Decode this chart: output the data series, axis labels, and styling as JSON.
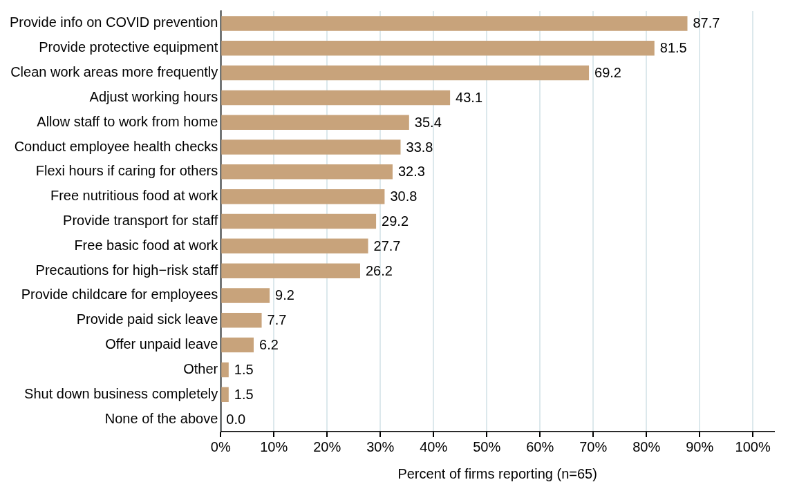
{
  "chart_data": {
    "type": "bar",
    "orientation": "horizontal",
    "xlabel": "Percent of firms reporting (n=65)",
    "categories": [
      "Provide info on COVID prevention",
      "Provide protective equipment",
      "Clean work areas more frequently",
      "Adjust working hours",
      "Allow staff to work from home",
      "Conduct employee health checks",
      "Flexi hours if caring for others",
      "Free nutritious food at work",
      "Provide transport for staff",
      "Free basic food at work",
      "Precautions for high−risk staff",
      "Provide childcare for employees",
      "Provide paid sick leave",
      "Offer unpaid leave",
      "Other",
      "Shut down business completely",
      "None of the above"
    ],
    "values": [
      87.7,
      81.5,
      69.2,
      43.1,
      35.4,
      33.8,
      32.3,
      30.8,
      29.2,
      27.7,
      26.2,
      9.2,
      7.7,
      6.2,
      1.5,
      1.5,
      0.0
    ],
    "value_labels": [
      "87.7",
      "81.5",
      "69.2",
      "43.1",
      "35.4",
      "33.8",
      "32.3",
      "30.8",
      "29.2",
      "27.7",
      "26.2",
      "9.2",
      "7.7",
      "6.2",
      "1.5",
      "1.5",
      "0.0"
    ],
    "color": "#c8a37b",
    "xlim": [
      0,
      104
    ],
    "xticks": [
      {
        "value": 0,
        "label": "0%"
      },
      {
        "value": 10,
        "label": "10%"
      },
      {
        "value": 20,
        "label": "20%"
      },
      {
        "value": 30,
        "label": "30%"
      },
      {
        "value": 40,
        "label": "40%"
      },
      {
        "value": 50,
        "label": "50%"
      },
      {
        "value": 60,
        "label": "60%"
      },
      {
        "value": 70,
        "label": "70%"
      },
      {
        "value": 80,
        "label": "80%"
      },
      {
        "value": 90,
        "label": "90%"
      },
      {
        "value": 100,
        "label": "100%"
      }
    ],
    "grid": "x",
    "legend": false
  }
}
